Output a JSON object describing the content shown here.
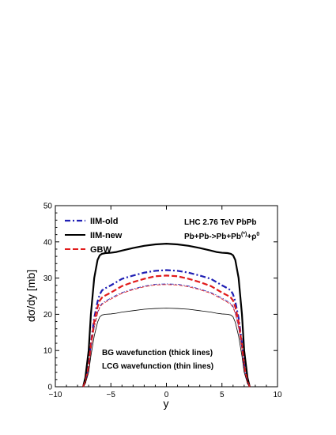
{
  "chart_data": {
    "type": "line",
    "title": "",
    "xlabel": "y",
    "ylabel": "dσ/dy [mb]",
    "xlim": [
      -10,
      10
    ],
    "ylim": [
      0,
      50
    ],
    "xticks": [
      -10,
      -5,
      0,
      5,
      10
    ],
    "yticks": [
      0,
      10,
      20,
      30,
      40,
      50
    ],
    "grid": false,
    "legend_position": "top-left",
    "annotations": {
      "collision": "LHC 2.76 TeV PbPb",
      "process": "Pb+Pb->Pb+Pb",
      "process_sup": "(*)",
      "process_tail": "+ρ",
      "process_tail_sup": "0",
      "note_thick": "BG wavefunction (thick lines)",
      "note_thin": "LCG wavefunction (thin lines)"
    },
    "x": [
      -7.5,
      -7.3,
      -7.0,
      -6.8,
      -6.5,
      -6.2,
      -6.0,
      -5.8,
      -5.5,
      -5.0,
      -4.5,
      -4.0,
      -3.0,
      -2.0,
      -1.0,
      0.0,
      1.0,
      2.0,
      3.0,
      4.0,
      4.5,
      5.0,
      5.5,
      5.8,
      6.0,
      6.2,
      6.5,
      6.8,
      7.0,
      7.3,
      7.5
    ],
    "series": [
      {
        "name": "IIM-old",
        "color": "#1f1fb4",
        "style": "dashdot",
        "thickness": "thick",
        "values": [
          0.0,
          1.5,
          6.0,
          12.0,
          19.0,
          23.5,
          25.5,
          26.6,
          27.2,
          28.0,
          28.9,
          29.8,
          30.7,
          31.5,
          32.0,
          32.2,
          32.0,
          31.5,
          30.7,
          29.8,
          28.9,
          28.0,
          27.2,
          26.6,
          25.5,
          23.5,
          19.0,
          12.0,
          6.0,
          1.5,
          0.0
        ]
      },
      {
        "name": "IIM-new",
        "color": "#000000",
        "style": "solid",
        "thickness": "thick",
        "values": [
          0.0,
          2.5,
          10.0,
          20.0,
          30.0,
          35.0,
          36.3,
          36.7,
          36.9,
          37.0,
          37.2,
          37.6,
          38.3,
          38.9,
          39.3,
          39.5,
          39.3,
          38.9,
          38.3,
          37.6,
          37.2,
          37.0,
          36.9,
          36.7,
          36.3,
          35.0,
          30.0,
          20.0,
          10.0,
          2.5,
          0.0
        ]
      },
      {
        "name": "GBW",
        "color": "#e11b1b",
        "style": "dashed",
        "thickness": "thick",
        "values": [
          0.0,
          1.3,
          5.5,
          11.5,
          18.0,
          22.0,
          23.8,
          24.6,
          25.2,
          26.0,
          26.9,
          27.8,
          28.9,
          29.8,
          30.5,
          30.7,
          30.5,
          29.8,
          28.9,
          27.8,
          26.9,
          26.0,
          25.2,
          24.6,
          23.8,
          22.0,
          18.0,
          11.5,
          5.5,
          1.3,
          0.0
        ]
      },
      {
        "name": "IIM-old (LCG)",
        "color": "#1f1fb4",
        "style": "dashdot",
        "thickness": "thin",
        "values": [
          0.0,
          1.2,
          5.0,
          10.5,
          16.5,
          20.5,
          22.2,
          23.0,
          23.6,
          24.5,
          25.3,
          26.0,
          27.0,
          27.8,
          28.3,
          28.4,
          28.3,
          27.8,
          27.0,
          26.0,
          25.3,
          24.5,
          23.6,
          23.0,
          22.2,
          20.5,
          16.5,
          10.5,
          5.0,
          1.2,
          0.0
        ]
      },
      {
        "name": "IIM-new (LCG)",
        "color": "#000000",
        "style": "solid",
        "thickness": "thin",
        "values": [
          0.0,
          0.9,
          4.0,
          8.5,
          14.0,
          17.8,
          19.3,
          19.8,
          20.0,
          20.1,
          20.3,
          20.6,
          21.0,
          21.4,
          21.6,
          21.7,
          21.6,
          21.4,
          21.0,
          20.6,
          20.3,
          20.1,
          20.0,
          19.8,
          19.3,
          17.8,
          14.0,
          8.5,
          4.0,
          0.9,
          0.0
        ]
      },
      {
        "name": "GBW (LCG)",
        "color": "#e11b1b",
        "style": "dashed",
        "thickness": "thin",
        "values": [
          0.0,
          1.2,
          5.0,
          10.5,
          16.3,
          20.2,
          21.9,
          22.7,
          23.3,
          24.2,
          25.0,
          25.8,
          26.8,
          27.6,
          28.1,
          28.2,
          28.1,
          27.6,
          26.8,
          25.8,
          25.0,
          24.2,
          23.3,
          22.7,
          21.9,
          20.2,
          16.3,
          10.5,
          5.0,
          1.2,
          0.0
        ]
      }
    ],
    "legend": [
      {
        "label": "IIM-old",
        "series": 0
      },
      {
        "label": "IIM-new",
        "series": 1
      },
      {
        "label": "GBW",
        "series": 2
      }
    ]
  }
}
